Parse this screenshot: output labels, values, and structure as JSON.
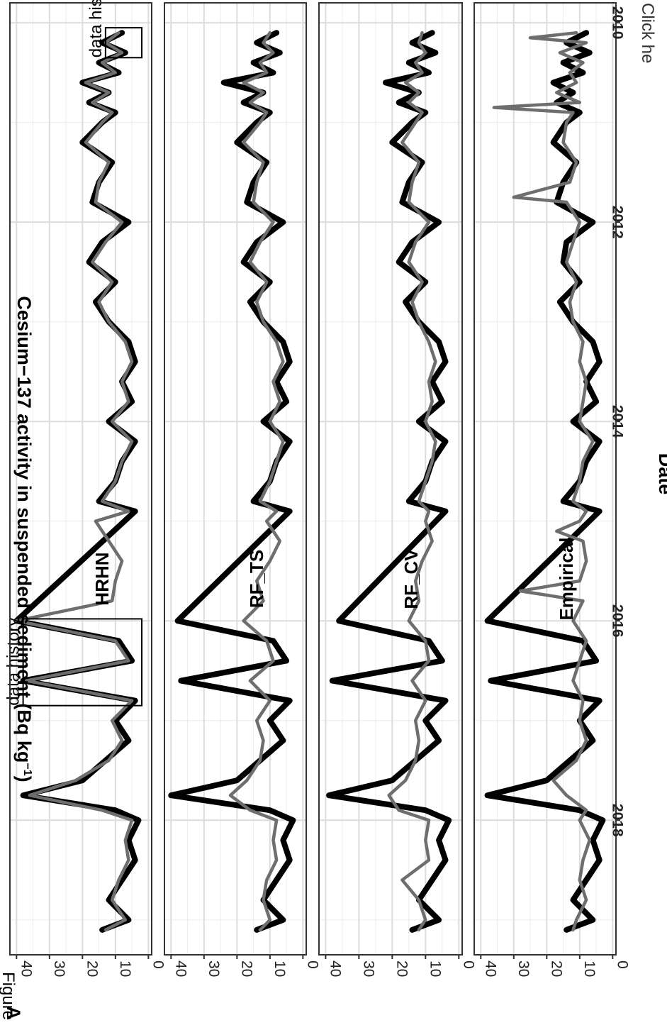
{
  "figure_label": "Figure",
  "figure_panel": "A",
  "click_label": "Click he",
  "y_axis_title": "Cesium−137 activity in suspended sediment (Bq kg",
  "y_axis_superscript": "−1",
  "y_axis_close": ")",
  "x_axis_title": "Date",
  "colors": {
    "observed": "#000000",
    "model": "#6e6e6e",
    "grid": "#dcdcdc",
    "panel_border": "#333333"
  },
  "chart_data": {
    "type": "line",
    "xlabel": "Date",
    "ylabel": "Cesium−137 activity in suspended sediment (Bq kg−1)",
    "x_ticks": [
      2010,
      2012,
      2014,
      2016,
      2018
    ],
    "y_ticks": [
      0,
      10,
      20,
      30,
      40
    ],
    "xlim": [
      2009.8,
      2019.35
    ],
    "ylim": [
      -1,
      42
    ],
    "grid": true,
    "panels": [
      {
        "label": "HRHN",
        "annotations": [
          {
            "text": "data history",
            "box_x": [
              2010.05,
              2010.35
            ],
            "box_y": [
              2,
              13
            ]
          },
          {
            "text": "data history",
            "box_x": [
              2015.98,
              2016.85
            ],
            "box_y": [
              2,
              38
            ]
          }
        ],
        "series": [
          {
            "name": "Observed",
            "x": [
              2010.1,
              2010.2,
              2010.3,
              2010.4,
              2010.5,
              2010.6,
              2010.7,
              2010.8,
              2010.9,
              2011.0,
              2011.2,
              2011.4,
              2011.6,
              2011.8,
              2012.0,
              2012.2,
              2012.4,
              2012.6,
              2012.8,
              2013.0,
              2013.2,
              2013.4,
              2013.6,
              2013.8,
              2014.0,
              2014.2,
              2014.4,
              2014.6,
              2014.8,
              2014.9,
              2016.0,
              2016.2,
              2016.4,
              2016.6,
              2016.8,
              2017.0,
              2017.2,
              2017.4,
              2017.6,
              2017.75,
              2017.9,
              2018.0,
              2018.2,
              2018.4,
              2018.6,
              2018.8,
              2019.0,
              2019.1
            ],
            "y": [
              8,
              14,
              7,
              15,
              9,
              20,
              12,
              18,
              10,
              14,
              20,
              11,
              15,
              17,
              6,
              14,
              18,
              10,
              16,
              12,
              6,
              4,
              8,
              5,
              12,
              4,
              8,
              10,
              15,
              4,
              40,
              9,
              5,
              38,
              4,
              10,
              6,
              13,
              20,
              38,
              10,
              3,
              6,
              4,
              8,
              12,
              6,
              14
            ]
          },
          {
            "name": "HRHN",
            "x": [
              2010.1,
              2010.2,
              2010.3,
              2010.4,
              2010.5,
              2010.6,
              2010.7,
              2010.8,
              2010.9,
              2011.0,
              2011.2,
              2011.4,
              2011.6,
              2011.8,
              2012.0,
              2012.2,
              2012.4,
              2012.6,
              2012.8,
              2013.0,
              2013.2,
              2013.4,
              2013.6,
              2013.8,
              2014.0,
              2014.2,
              2014.4,
              2014.6,
              2014.8,
              2014.9,
              2015.0,
              2015.2,
              2015.4,
              2015.6,
              2015.8,
              2016.0,
              2016.2,
              2016.4,
              2016.6,
              2016.8,
              2017.0,
              2017.2,
              2017.4,
              2017.6,
              2017.75,
              2017.9,
              2018.0,
              2018.2,
              2018.4,
              2018.6,
              2018.8,
              2019.0,
              2019.1
            ],
            "y": [
              9,
              13,
              8,
              14,
              10,
              19,
              12,
              17,
              11,
              14,
              19,
              12,
              15,
              16,
              8,
              13,
              17,
              11,
              15,
              12,
              7,
              5,
              8,
              6,
              11,
              5,
              8,
              10,
              14,
              6,
              16,
              12,
              8,
              10,
              11,
              40,
              10,
              6,
              37,
              5,
              11,
              8,
              12,
              22,
              36,
              14,
              5,
              7,
              6,
              9,
              11,
              7,
              13
            ]
          }
        ]
      },
      {
        "label": "RF_TS",
        "annotations": [],
        "series": [
          {
            "name": "Observed",
            "x": [
              2010.1,
              2010.2,
              2010.3,
              2010.4,
              2010.5,
              2010.6,
              2010.7,
              2010.8,
              2010.9,
              2011.0,
              2011.2,
              2011.4,
              2011.6,
              2011.8,
              2012.0,
              2012.2,
              2012.4,
              2012.6,
              2012.8,
              2013.0,
              2013.2,
              2013.4,
              2013.6,
              2013.8,
              2014.0,
              2014.2,
              2014.4,
              2014.6,
              2014.8,
              2014.9,
              2016.0,
              2016.2,
              2016.4,
              2016.6,
              2016.8,
              2017.0,
              2017.2,
              2017.4,
              2017.6,
              2017.75,
              2017.9,
              2018.0,
              2018.2,
              2018.4,
              2018.6,
              2018.8,
              2019.0,
              2019.1
            ],
            "y": [
              8,
              14,
              7,
              15,
              9,
              24,
              12,
              18,
              10,
              14,
              20,
              11,
              15,
              17,
              6,
              14,
              18,
              10,
              16,
              12,
              6,
              4,
              8,
              5,
              12,
              4,
              8,
              10,
              15,
              4,
              38,
              9,
              5,
              37,
              4,
              10,
              6,
              13,
              20,
              40,
              10,
              3,
              6,
              4,
              8,
              12,
              6,
              14
            ]
          },
          {
            "name": "RF_TS",
            "x": [
              2010.1,
              2010.2,
              2010.3,
              2010.4,
              2010.5,
              2010.6,
              2010.7,
              2010.8,
              2010.9,
              2011.0,
              2011.2,
              2011.4,
              2011.6,
              2011.8,
              2012.0,
              2012.2,
              2012.4,
              2012.6,
              2012.8,
              2013.0,
              2013.2,
              2013.4,
              2013.6,
              2013.8,
              2014.0,
              2014.2,
              2014.4,
              2014.6,
              2014.8,
              2014.9,
              2015.0,
              2015.2,
              2015.4,
              2015.6,
              2015.8,
              2016.0,
              2016.2,
              2016.4,
              2016.6,
              2016.8,
              2017.0,
              2017.2,
              2017.4,
              2017.6,
              2017.75,
              2017.9,
              2018.0,
              2018.2,
              2018.4,
              2018.6,
              2018.8,
              2019.0,
              2019.1
            ],
            "y": [
              10,
              12,
              9,
              13,
              11,
              18,
              12,
              16,
              11,
              13,
              18,
              12,
              14,
              15,
              9,
              13,
              16,
              11,
              14,
              12,
              8,
              6,
              9,
              7,
              10,
              6,
              8,
              10,
              13,
              8,
              11,
              7,
              10,
              14,
              12,
              18,
              11,
              9,
              16,
              10,
              14,
              12,
              13,
              17,
              22,
              16,
              8,
              9,
              8,
              11,
              12,
              10,
              13
            ]
          }
        ]
      },
      {
        "label": "RF_CV",
        "annotations": [],
        "series": [
          {
            "name": "Observed",
            "x": [
              2010.1,
              2010.2,
              2010.3,
              2010.4,
              2010.5,
              2010.6,
              2010.7,
              2010.8,
              2010.9,
              2011.0,
              2011.2,
              2011.4,
              2011.6,
              2011.8,
              2012.0,
              2012.2,
              2012.4,
              2012.6,
              2012.8,
              2013.0,
              2013.2,
              2013.4,
              2013.6,
              2013.8,
              2014.0,
              2014.2,
              2014.4,
              2014.6,
              2014.8,
              2014.9,
              2016.0,
              2016.2,
              2016.4,
              2016.6,
              2016.8,
              2017.0,
              2017.2,
              2017.4,
              2017.6,
              2017.75,
              2017.9,
              2018.0,
              2018.2,
              2018.4,
              2018.6,
              2018.8,
              2019.0,
              2019.1
            ],
            "y": [
              8,
              14,
              7,
              15,
              9,
              22,
              12,
              18,
              10,
              14,
              20,
              11,
              15,
              17,
              6,
              14,
              18,
              10,
              16,
              12,
              6,
              4,
              8,
              5,
              12,
              4,
              8,
              10,
              15,
              4,
              36,
              9,
              5,
              38,
              4,
              10,
              6,
              13,
              20,
              39,
              10,
              3,
              6,
              4,
              8,
              12,
              6,
              14
            ]
          },
          {
            "name": "RF_CV",
            "x": [
              2010.1,
              2010.2,
              2010.3,
              2010.4,
              2010.5,
              2010.6,
              2010.7,
              2010.8,
              2010.9,
              2011.0,
              2011.2,
              2011.4,
              2011.6,
              2011.8,
              2012.0,
              2012.2,
              2012.4,
              2012.6,
              2012.8,
              2013.0,
              2013.2,
              2013.4,
              2013.6,
              2013.8,
              2014.0,
              2014.2,
              2014.4,
              2014.6,
              2014.8,
              2014.9,
              2015.0,
              2015.2,
              2015.4,
              2015.6,
              2015.8,
              2016.0,
              2016.2,
              2016.4,
              2016.6,
              2016.8,
              2017.0,
              2017.2,
              2017.4,
              2017.6,
              2017.75,
              2017.9,
              2018.0,
              2018.2,
              2018.4,
              2018.6,
              2018.8,
              2019.0,
              2019.1
            ],
            "y": [
              11,
              12,
              10,
              13,
              11,
              16,
              12,
              15,
              11,
              13,
              17,
              12,
              14,
              15,
              9,
              13,
              15,
              11,
              14,
              12,
              9,
              7,
              9,
              8,
              10,
              7,
              8,
              10,
              12,
              9,
              10,
              8,
              11,
              13,
              12,
              15,
              10,
              9,
              14,
              10,
              13,
              12,
              13,
              16,
              21,
              18,
              9,
              10,
              9,
              17,
              12,
              10,
              12
            ]
          }
        ]
      },
      {
        "label": "Empirical",
        "annotations": [],
        "series": [
          {
            "name": "Observed",
            "x": [
              2010.1,
              2010.2,
              2010.3,
              2010.4,
              2010.5,
              2010.6,
              2010.7,
              2010.8,
              2010.9,
              2011.0,
              2011.2,
              2011.4,
              2011.6,
              2011.8,
              2012.0,
              2012.2,
              2012.4,
              2012.6,
              2012.8,
              2013.0,
              2013.2,
              2013.4,
              2013.6,
              2013.8,
              2014.0,
              2014.2,
              2014.4,
              2014.6,
              2014.8,
              2014.9,
              2016.0,
              2016.2,
              2016.4,
              2016.6,
              2016.8,
              2017.0,
              2017.2,
              2017.4,
              2017.6,
              2017.75,
              2017.9,
              2018.0,
              2018.2,
              2018.4,
              2018.6,
              2018.8,
              2019.0,
              2019.1
            ],
            "y": [
              8,
              14,
              7,
              15,
              9,
              18,
              12,
              17,
              10,
              14,
              18,
              11,
              15,
              17,
              6,
              14,
              15,
              10,
              16,
              12,
              6,
              4,
              8,
              5,
              12,
              4,
              8,
              10,
              15,
              4,
              38,
              9,
              5,
              37,
              4,
              10,
              6,
              13,
              20,
              38,
              10,
              3,
              6,
              4,
              8,
              12,
              6,
              14
            ]
          },
          {
            "name": "Empirical",
            "x": [
              2010.1,
              2010.15,
              2010.2,
              2010.3,
              2010.4,
              2010.5,
              2010.6,
              2010.7,
              2010.8,
              2010.85,
              2010.9,
              2011.0,
              2011.2,
              2011.4,
              2011.6,
              2011.75,
              2011.8,
              2012.0,
              2012.2,
              2012.4,
              2012.6,
              2012.8,
              2013.0,
              2013.2,
              2013.4,
              2013.6,
              2013.8,
              2014.0,
              2014.2,
              2014.4,
              2014.6,
              2014.8,
              2014.9,
              2015.0,
              2015.1,
              2015.2,
              2015.4,
              2015.6,
              2015.7,
              2015.8,
              2016.0,
              2016.2,
              2016.4,
              2016.6,
              2016.8,
              2017.0,
              2017.2,
              2017.4,
              2017.6,
              2017.75,
              2017.9,
              2018.0,
              2018.2,
              2018.4,
              2018.6,
              2018.8,
              2019.0,
              2019.1
            ],
            "y": [
              11,
              25,
              8,
              16,
              9,
              13,
              11,
              17,
              10,
              36,
              12,
              14,
              15,
              11,
              13,
              30,
              14,
              10,
              12,
              14,
              11,
              13,
              12,
              9,
              10,
              8,
              9,
              10,
              6,
              9,
              10,
              12,
              8,
              10,
              17,
              9,
              8,
              10,
              28,
              9,
              12,
              8,
              10,
              12,
              9,
              10,
              8,
              11,
              18,
              14,
              8,
              10,
              7,
              9,
              10,
              8,
              11,
              12
            ]
          }
        ]
      }
    ]
  }
}
